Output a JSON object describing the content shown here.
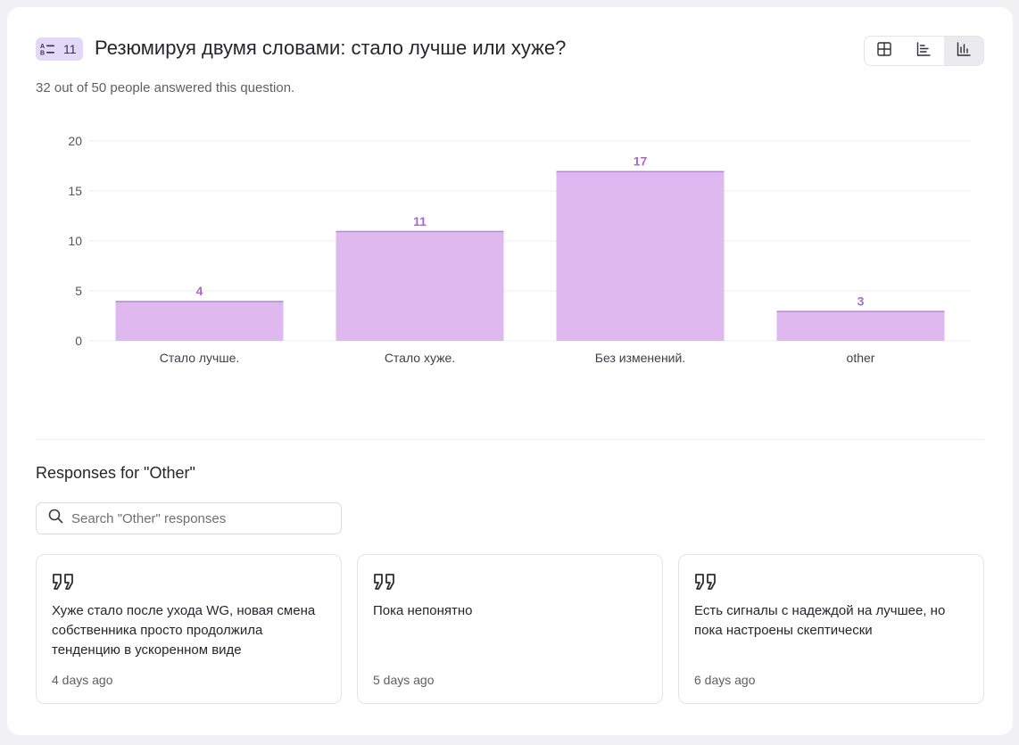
{
  "question": {
    "number": "11",
    "title": "Резюмируя двумя словами: стало лучше или хуже?",
    "answered_text": "32 out of 50 people answered this question."
  },
  "view_toggle": {
    "options": [
      "table-icon",
      "list-chart-icon",
      "bar-chart-icon"
    ],
    "active": "bar-chart-icon"
  },
  "colors": {
    "bar_fill": "#dfb8f0",
    "bar_top": "#b98ad6",
    "bar_label": "#a66cc8",
    "badge_bg": "#e4d8f7"
  },
  "chart_data": {
    "type": "bar",
    "categories": [
      "Стало лучше.",
      "Стало хуже.",
      "Без изменений.",
      "other"
    ],
    "values": [
      4,
      11,
      17,
      3
    ],
    "ylim": [
      0,
      20
    ],
    "yticks": [
      0,
      5,
      10,
      15,
      20
    ],
    "data_labels": [
      "4",
      "11",
      "17",
      "3"
    ],
    "grid": true,
    "title": "",
    "xlabel": "",
    "ylabel": ""
  },
  "other_section": {
    "heading": "Responses for \"Other\"",
    "search_placeholder": "Search \"Other\" responses",
    "responses": [
      {
        "text": "Хуже стало после ухода WG, новая смена собственника просто продолжила тенденцию в ускоренном виде",
        "time": "4 days ago"
      },
      {
        "text": "Пока непонятно",
        "time": "5 days ago"
      },
      {
        "text": "Есть сигналы с надеждой на лучшее, но пока настроены скептически",
        "time": "6 days ago"
      }
    ]
  }
}
